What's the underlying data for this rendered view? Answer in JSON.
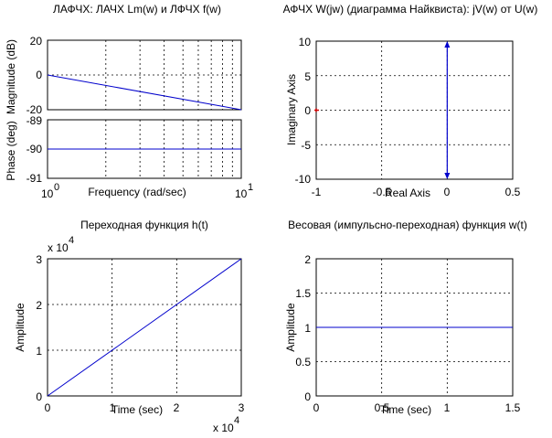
{
  "chart_data": [
    {
      "id": "bode",
      "type": "line",
      "title": "ЛАФЧХ: ЛАЧХ Lm(w) и ЛФЧХ f(w)",
      "xlabel": "Frequency  (rad/sec)",
      "xscale": "log",
      "xlim": [
        1,
        10
      ],
      "x_ticks": [
        {
          "base": "10",
          "exp": "0"
        },
        {
          "base": "10",
          "exp": "1"
        }
      ],
      "magnitude": {
        "ylabel": "Magnitude (dB)",
        "ylim": [
          -20,
          20
        ],
        "yticks": [
          "20",
          "0",
          "-20"
        ],
        "x": [
          1,
          10
        ],
        "y": [
          0,
          -20
        ]
      },
      "phase": {
        "ylabel": "Phase (deg)",
        "ylim": [
          -91,
          -89
        ],
        "yticks": [
          "-89",
          "-90",
          "-91"
        ],
        "x": [
          1,
          10
        ],
        "y": [
          -90,
          -90
        ]
      },
      "grid": true,
      "color": "#0000cc"
    },
    {
      "id": "nyquist",
      "type": "line",
      "title": "АФЧХ W(jw) (диаграмма Найквиста): jV(w) от U(w)",
      "xlabel": "Real Axis",
      "ylabel": "Imaginary Axis",
      "xlim": [
        -1,
        0.5
      ],
      "ylim": [
        -10,
        10
      ],
      "xticks": [
        "-1",
        "-0.5",
        "0",
        "0.5"
      ],
      "yticks": [
        "10",
        "5",
        "0",
        "-5",
        "-10"
      ],
      "x": [
        0,
        0
      ],
      "y": [
        -9.6,
        9.6
      ],
      "grid": true,
      "color": "#0000cc",
      "marker_color": "#cc0000"
    },
    {
      "id": "step",
      "type": "line",
      "title": "Переходная функция h(t)",
      "xlabel": "Time (sec)",
      "ylabel": "Amplitude",
      "xlim": [
        0,
        3
      ],
      "ylim": [
        0,
        3
      ],
      "xticks": [
        "0",
        "1",
        "2",
        "3"
      ],
      "yticks": [
        "3",
        "2",
        "1",
        "0"
      ],
      "x_multiplier": {
        "base": "x 10",
        "exp": "4"
      },
      "y_multiplier": {
        "base": "x 10",
        "exp": "4"
      },
      "x": [
        0,
        3
      ],
      "y": [
        0,
        3
      ],
      "grid": true,
      "color": "#0000cc"
    },
    {
      "id": "impulse",
      "type": "line",
      "title": "Весовая (импульсно-переходная) функция w(t)",
      "xlabel": "Time (sec)",
      "ylabel": "Amplitude",
      "xlim": [
        0,
        1.5
      ],
      "ylim": [
        0,
        2
      ],
      "xticks": [
        "0",
        "0.5",
        "1",
        "1.5"
      ],
      "yticks": [
        "2",
        "1.5",
        "1",
        "0.5",
        "0"
      ],
      "x": [
        0,
        1.5
      ],
      "y": [
        1,
        1
      ],
      "grid": true,
      "color": "#0000cc"
    }
  ]
}
